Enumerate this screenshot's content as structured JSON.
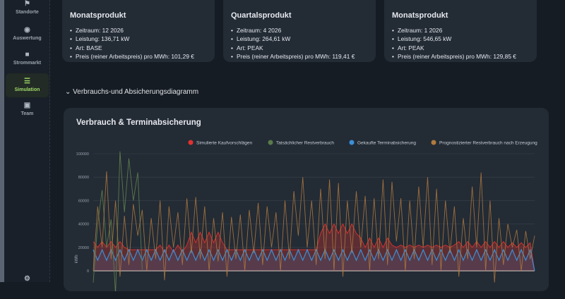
{
  "sidebar": {
    "items": [
      {
        "label": "Standorte",
        "icon": "flag-icon",
        "active": false
      },
      {
        "label": "Auswertung",
        "icon": "gauge-icon",
        "active": false
      },
      {
        "label": "Strommarkt",
        "icon": "briefcase-icon",
        "active": false
      },
      {
        "label": "Simulation",
        "icon": "bars-icon",
        "active": true
      },
      {
        "label": "Team",
        "icon": "user-icon",
        "active": false
      }
    ]
  },
  "cards": [
    {
      "title": "Monatsprodukt",
      "lines": [
        "Zeitraum: 12 2026",
        "Leistung: 136,71 kW",
        "Art: BASE",
        "Preis (reiner Arbeitspreis) pro MWh: 101,29 €"
      ]
    },
    {
      "title": "Quartalsprodukt",
      "lines": [
        "Zeitraum: 4 2026",
        "Leistung: 264,61 kW",
        "Art: PEAK",
        "Preis (reiner Arbeitspreis) pro MWh: 119,41 €"
      ]
    },
    {
      "title": "Monatsprodukt",
      "lines": [
        "Zeitraum: 1 2026",
        "Leistung: 546,65 kW",
        "Art: PEAK",
        "Preis (reiner Arbeitspreis) pro MWh: 129,85 €"
      ]
    }
  ],
  "section": {
    "label": "Verbrauchs-und Absicherungsdiagramm"
  },
  "chart_data": {
    "type": "line",
    "title": "Verbrauch & Terminabsicherung",
    "ylabel": "kWh",
    "ylim": [
      -10000,
      100000
    ],
    "yticks": [
      0,
      20000,
      40000,
      60000,
      80000,
      100000
    ],
    "grid": true,
    "legend_position": "top-right",
    "series": [
      {
        "name": "Simulierte Kaufvorschlägen",
        "color": "#e0322e",
        "fill": true,
        "values": [
          25000,
          20000,
          25000,
          20000,
          25000,
          20000,
          25000,
          20000,
          18000,
          18000,
          18000,
          18000,
          18000,
          18000,
          18000,
          22000,
          16000,
          22000,
          16000,
          22000,
          16000,
          22000,
          33000,
          24000,
          33000,
          24000,
          33000,
          24000,
          33000,
          24000,
          18000,
          18000,
          18000,
          18000,
          18000,
          18000,
          18000,
          18000,
          18000,
          18000,
          18000,
          18000,
          18000,
          18000,
          18000,
          18000,
          18000,
          18000,
          18000,
          18000,
          18000,
          32000,
          40000,
          32000,
          40000,
          32000,
          40000,
          32000,
          40000,
          32000,
          28000,
          20000,
          28000,
          20000,
          28000,
          20000,
          28000,
          22000,
          20000,
          22000,
          20000,
          22000,
          20000,
          22000,
          20000,
          22000,
          20000,
          22000,
          20000,
          22000,
          20000,
          22000,
          25000,
          20000,
          25000,
          20000,
          25000,
          20000,
          25000,
          20000,
          25000,
          20000,
          25000,
          20000,
          24000,
          20000,
          24000,
          20000,
          24000,
          0
        ]
      },
      {
        "name": "Tatsächlicher Restverbrauch",
        "color": "#5a7a4a",
        "fill": false,
        "values": [
          -10000,
          40000,
          69000,
          20000,
          44000,
          -20000,
          102000,
          50000,
          96000,
          60000,
          84000,
          0
        ]
      },
      {
        "name": "Gekaufte Terminabsicherung",
        "color": "#3b8fd6",
        "fill": true,
        "values": [
          18000,
          9000,
          18000,
          9000,
          18000,
          9000,
          18000,
          9000,
          18000,
          9000,
          18000,
          9000,
          18000,
          9000,
          18000,
          9000,
          18000,
          9000,
          18000,
          9000,
          18000,
          9000,
          18000,
          9000,
          18000,
          9000,
          18000,
          9000,
          18000,
          9000,
          18000,
          9000,
          18000,
          9000,
          18000,
          9000,
          18000,
          9000,
          18000,
          9000,
          18000,
          9000,
          18000,
          9000,
          18000,
          9000,
          18000,
          9000,
          18000,
          9000,
          18000,
          9000,
          18000,
          9000,
          18000,
          9000,
          18000,
          9000,
          18000,
          9000,
          18000,
          9000,
          18000,
          9000,
          18000,
          9000,
          18000,
          9000,
          18000,
          9000,
          18000,
          9000,
          18000,
          9000,
          18000,
          9000,
          18000,
          9000,
          18000,
          9000,
          18000,
          9000,
          18000,
          9000,
          18000,
          9000,
          18000,
          9000,
          18000,
          9000,
          18000,
          9000,
          18000,
          9000,
          18000,
          9000,
          18000,
          9000,
          18000,
          0
        ]
      },
      {
        "name": "Prognostizierter Restverbrauch nach Erzeugung",
        "color": "#b07a3e",
        "fill": false,
        "values": [
          0,
          55000,
          20000,
          85000,
          10000,
          60000,
          -5000,
          47000,
          5000,
          57000,
          30000,
          52000,
          0,
          45000,
          10000,
          60000,
          -8000,
          55000,
          20000,
          50000,
          5000,
          62000,
          15000,
          63000,
          10000,
          55000,
          0,
          45000,
          8000,
          50000,
          -5000,
          46000,
          10000,
          48000,
          0,
          52000,
          15000,
          58000,
          5000,
          55000,
          20000,
          50000,
          0,
          60000,
          10000,
          68000,
          30000,
          80000,
          20000,
          60000,
          5000,
          70000,
          10000,
          78000,
          0,
          75000,
          -5000,
          60000,
          15000,
          68000,
          20000,
          64000,
          0,
          62000,
          10000,
          78000,
          5000,
          76000,
          25000,
          62000,
          0,
          60000,
          10000,
          72000,
          20000,
          80000,
          5000,
          70000,
          0,
          60000,
          15000,
          55000,
          -5000,
          45000,
          10000,
          72000,
          20000,
          84000,
          0,
          60000,
          -10000,
          45000,
          5000,
          40000,
          20000,
          35000,
          0,
          34000,
          10000,
          30000
        ]
      }
    ]
  }
}
